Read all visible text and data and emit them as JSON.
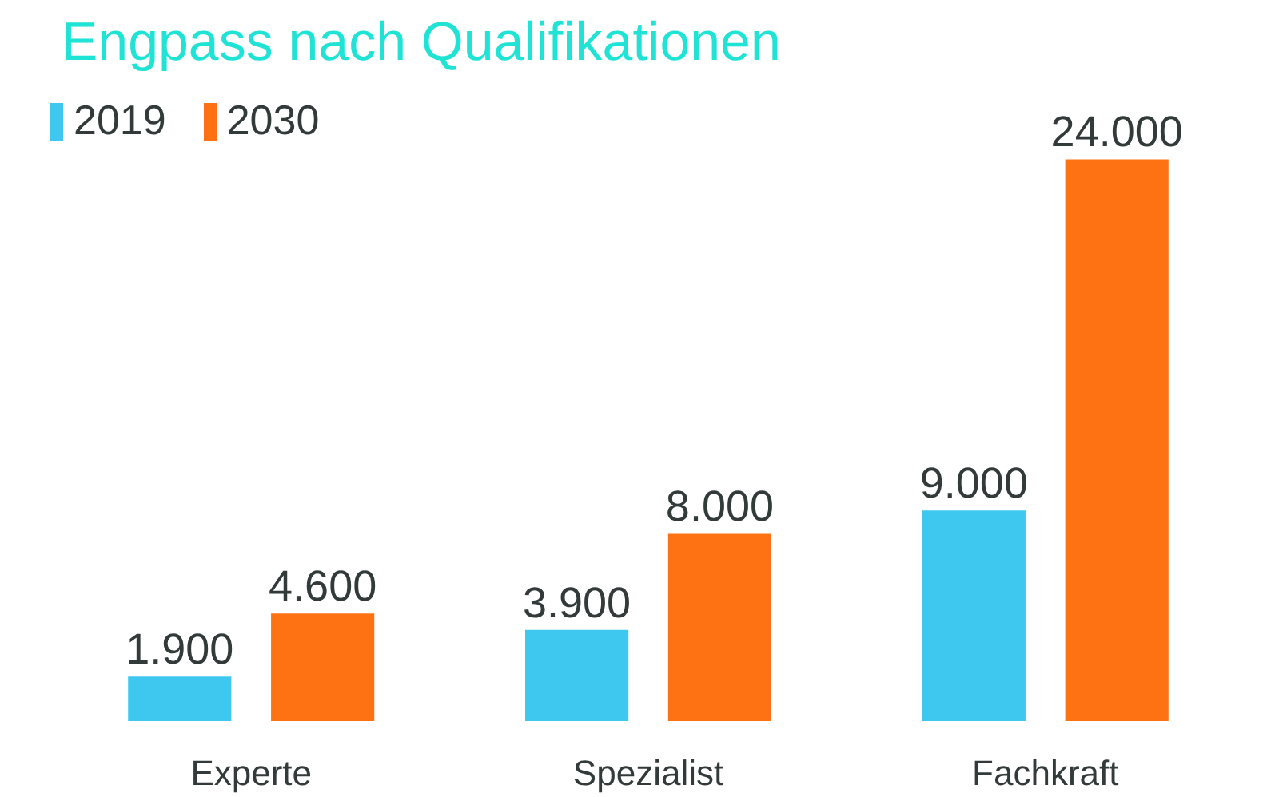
{
  "chart_data": {
    "type": "bar",
    "title": "Engpass nach Qualifikationen",
    "categories": [
      "Experte",
      "Spezialist",
      "Fachkraft"
    ],
    "series": [
      {
        "name": "2019",
        "color": "#3ec8f0",
        "values": [
          1900,
          3900,
          9000
        ],
        "value_labels": [
          "1.900",
          "3.900",
          "9.000"
        ]
      },
      {
        "name": "2030",
        "color": "#ff7214",
        "values": [
          4600,
          8000,
          24000
        ],
        "value_labels": [
          "4.600",
          "8.000",
          "24.000"
        ]
      }
    ],
    "legend": "top left",
    "grid": false
  }
}
